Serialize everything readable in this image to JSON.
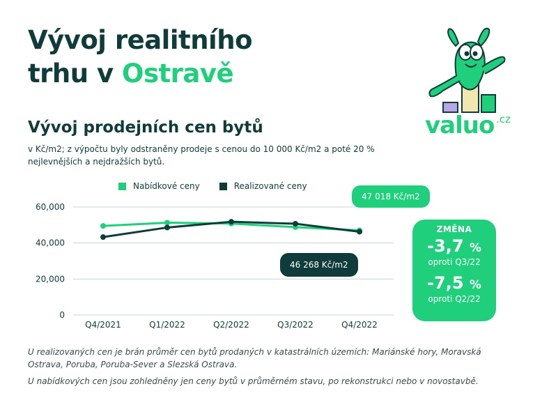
{
  "header": {
    "title_line1": "Vývoj realitního",
    "title_line2_prefix": "trhu v ",
    "title_line2_accent": "Ostravě"
  },
  "section": {
    "title": "Vývoj prodejních cen bytů",
    "note": "v Kč/m2; z výpočtu byly odstraněny prodeje s cenou do 10 000 Kč/m2 a poté 20 % nejlevnějších a nejdražších bytů."
  },
  "logo": {
    "text": "valuo",
    "tld": ".cz"
  },
  "colors": {
    "green": "#1fcf7c",
    "dark": "#0f3b3a",
    "grid": "#c9d3d3"
  },
  "chart_data": {
    "type": "line",
    "categories": [
      "Q4/2021",
      "Q1/2022",
      "Q2/2022",
      "Q3/2022",
      "Q4/2022"
    ],
    "ylim": [
      0,
      60000
    ],
    "yticks": [
      "0",
      "20,000",
      "40,000",
      "60,000"
    ],
    "ytick_values": [
      0,
      20000,
      40000,
      60000
    ],
    "series": [
      {
        "name": "Nabídkové ceny",
        "color": "#1fcf7c",
        "values": [
          49500,
          51300,
          50800,
          48800,
          47018
        ]
      },
      {
        "name": "Realizované ceny",
        "color": "#0f3b3a",
        "values": [
          43300,
          48600,
          51800,
          50700,
          46268
        ]
      }
    ],
    "grid": true,
    "legend_position": "top",
    "annotations": {
      "offer_last": "47 018 Kč/m2",
      "realized_last": "46 268 Kč/m2"
    }
  },
  "change": {
    "header": "ZMĚNA",
    "q3_value": "-3,7",
    "q3_unit": "%",
    "q3_label": "oproti Q3/22",
    "q2_value": "-7,5",
    "q2_unit": "%",
    "q2_label": "oproti Q2/22"
  },
  "footnotes": [
    "U realizovaných cen je brán průměr cen bytů prodaných v katastrálních územích: Mariánské hory, Moravská Ostrava, Poruba, Poruba-Sever a Slezská Ostrava.",
    "U nabídkových cen jsou zohledněny jen ceny bytů v průměrném stavu, po rekonstrukci nebo v novostavbě."
  ]
}
